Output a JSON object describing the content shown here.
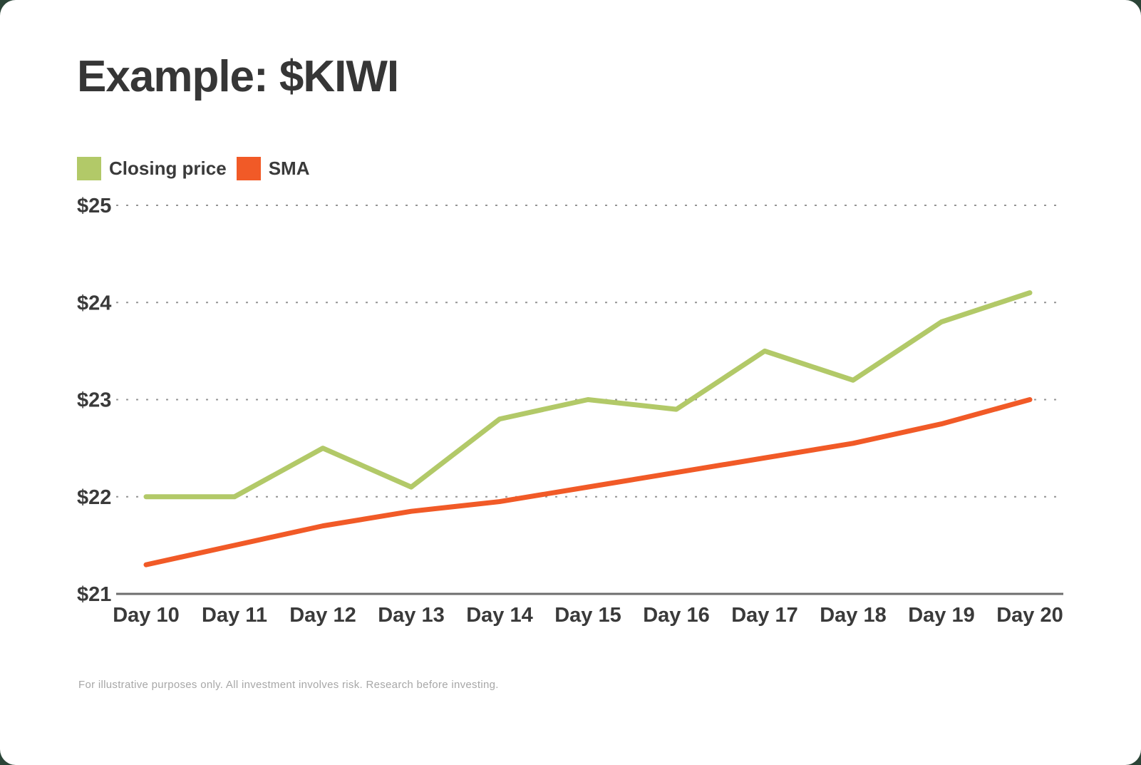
{
  "page": {
    "title": "Example: $KIWI",
    "footer": "For illustrative purposes only. All investment involves risk. Research before investing."
  },
  "colors": {
    "closing_price": "#b2c968",
    "sma": "#f15a27",
    "title_text": "#363636",
    "axis_text": "#3a3a3a",
    "gridline": "#949494",
    "axis_line": "#6e6e6e",
    "footer_text": "#a7a7a7",
    "card_background": "#ffffff",
    "backdrop": "#2b4437"
  },
  "chart_data": {
    "type": "line",
    "title": "Example: $KIWI",
    "categories": [
      "Day 10",
      "Day 11",
      "Day 12",
      "Day 13",
      "Day 14",
      "Day 15",
      "Day 16",
      "Day 17",
      "Day 18",
      "Day 19",
      "Day 20"
    ],
    "series": [
      {
        "name": "Closing price",
        "color": "#b2c968",
        "values": [
          22.0,
          22.0,
          22.5,
          22.1,
          22.8,
          23.0,
          22.9,
          23.5,
          23.2,
          23.8,
          24.1
        ]
      },
      {
        "name": "SMA",
        "color": "#f15a27",
        "values": [
          21.3,
          21.5,
          21.7,
          21.85,
          21.95,
          22.1,
          22.25,
          22.4,
          22.55,
          22.75,
          23.0
        ]
      }
    ],
    "xlabel": "",
    "ylabel": "",
    "y_axis": {
      "tick_labels": [
        "$25",
        "$24",
        "$23",
        "$22",
        "$21"
      ],
      "tick_values": [
        25,
        24,
        23,
        22,
        21
      ],
      "min": 21,
      "max": 25
    },
    "grid": "horizontal-dotted",
    "legend_position": "top-left"
  }
}
